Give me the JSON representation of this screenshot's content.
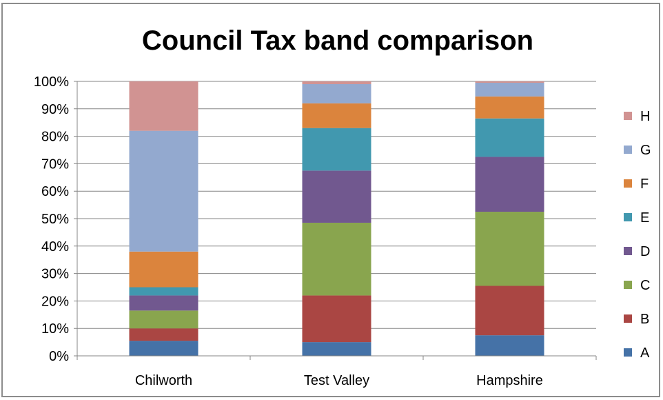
{
  "chart_data": {
    "type": "bar",
    "stacked": true,
    "title": "Council Tax band comparison",
    "categories": [
      "Chilworth",
      "Test Valley",
      "Hampshire"
    ],
    "ylim": [
      0,
      100
    ],
    "yticks": [
      "0%",
      "10%",
      "20%",
      "30%",
      "40%",
      "50%",
      "60%",
      "70%",
      "80%",
      "90%",
      "100%"
    ],
    "grid": true,
    "legend_position": "right",
    "series": [
      {
        "name": "A",
        "color": "#4572A7",
        "values": [
          5.5,
          5.0,
          7.5
        ]
      },
      {
        "name": "B",
        "color": "#AA4643",
        "values": [
          4.5,
          17.0,
          18.0
        ]
      },
      {
        "name": "C",
        "color": "#89A54E",
        "values": [
          6.5,
          26.5,
          27.0
        ]
      },
      {
        "name": "D",
        "color": "#71588F",
        "values": [
          5.5,
          19.0,
          20.0
        ]
      },
      {
        "name": "E",
        "color": "#4198AF",
        "values": [
          3.0,
          15.5,
          14.0
        ]
      },
      {
        "name": "F",
        "color": "#DB843D",
        "values": [
          13.0,
          9.0,
          8.0
        ]
      },
      {
        "name": "G",
        "color": "#93A9CF",
        "values": [
          44.0,
          7.0,
          5.0
        ]
      },
      {
        "name": "H",
        "color": "#D19392",
        "values": [
          18.0,
          1.0,
          0.5
        ]
      }
    ]
  }
}
